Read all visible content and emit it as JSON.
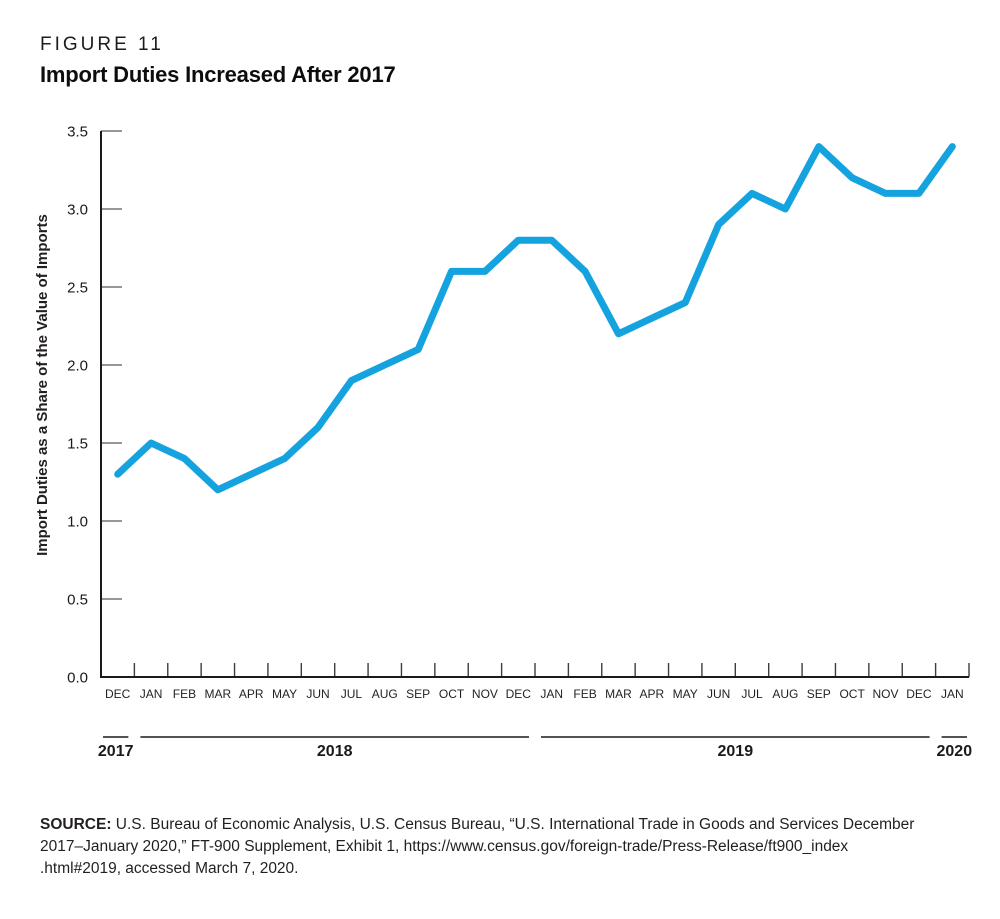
{
  "figure": {
    "label": "FIGURE 11",
    "title": "Import Duties Increased After 2017"
  },
  "source": {
    "label": "SOURCE:",
    "lines": [
      "U.S. Bureau of Economic Analysis, U.S. Census Bureau, “U.S. International Trade in Goods and Services December",
      "2017–January 2020,” FT-900 Supplement, Exhibit 1, https://www.census.gov/foreign-trade/Press-Release/ft900_index",
      ".html#2019, accessed March 7, 2020."
    ]
  },
  "chart_data": {
    "type": "line",
    "title": "Import Duties Increased After 2017",
    "ylabel": "Import Duties as a Share of the Value of Imports",
    "xlabel": "",
    "categories": [
      "DEC",
      "JAN",
      "FEB",
      "MAR",
      "APR",
      "MAY",
      "JUN",
      "JUL",
      "AUG",
      "SEP",
      "OCT",
      "NOV",
      "DEC",
      "JAN",
      "FEB",
      "MAR",
      "APR",
      "MAY",
      "JUN",
      "JUL",
      "AUG",
      "SEP",
      "OCT",
      "NOV",
      "DEC",
      "JAN"
    ],
    "year_groups": [
      {
        "label": "2017",
        "start_index": 0,
        "end_index": 0
      },
      {
        "label": "2018",
        "start_index": 1,
        "end_index": 12
      },
      {
        "label": "2019",
        "start_index": 13,
        "end_index": 24
      },
      {
        "label": "2020",
        "start_index": 25,
        "end_index": 25
      }
    ],
    "series": [
      {
        "name": "Import duties as a share of the value of imports",
        "color": "#15a3e0",
        "values": [
          1.3,
          1.5,
          1.4,
          1.2,
          1.3,
          1.4,
          1.6,
          1.9,
          2.0,
          2.1,
          2.6,
          2.6,
          2.8,
          2.8,
          2.6,
          2.2,
          2.3,
          2.4,
          2.9,
          3.1,
          3.0,
          3.4,
          3.2,
          3.1,
          3.1,
          3.4
        ]
      }
    ],
    "ylim": [
      0.0,
      3.5
    ],
    "ytick_step": 0.5,
    "grid": false,
    "legend": "none"
  },
  "colors": {
    "line": "#15a3e0",
    "axis": "#1a1a1a",
    "x_tick": "#3d3d3d",
    "y_tick": "#757575",
    "tick_text": "#1a1a1a",
    "month_text": "#231f20",
    "background": "#ffffff"
  }
}
